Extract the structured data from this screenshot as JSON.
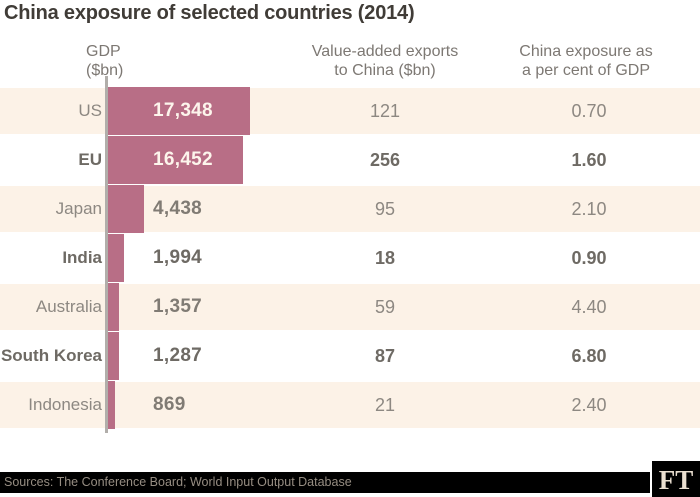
{
  "title": "China exposure of selected countries (2014)",
  "headers": {
    "gdp": {
      "line1": "GDP",
      "line2": "($bn)"
    },
    "exports": {
      "line1": "Value-added exports",
      "line2": "to China ($bn)"
    },
    "exposure": {
      "line1": "China exposure as",
      "line2": "a per cent of GDP"
    }
  },
  "rows": [
    {
      "country": "US",
      "gdp_label": "17,348",
      "gdp_value": 17348,
      "exports": "121",
      "exposure": "0.70",
      "highlight": false
    },
    {
      "country": "EU",
      "gdp_label": "16,452",
      "gdp_value": 16452,
      "exports": "256",
      "exposure": "1.60",
      "highlight": true
    },
    {
      "country": "Japan",
      "gdp_label": "4,438",
      "gdp_value": 4438,
      "exports": "95",
      "exposure": "2.10",
      "highlight": false
    },
    {
      "country": "India",
      "gdp_label": "1,994",
      "gdp_value": 1994,
      "exports": "18",
      "exposure": "0.90",
      "highlight": true
    },
    {
      "country": "Australia",
      "gdp_label": "1,357",
      "gdp_value": 1357,
      "exports": "59",
      "exposure": "4.40",
      "highlight": false
    },
    {
      "country": "South Korea",
      "gdp_label": "1,287",
      "gdp_value": 1287,
      "exports": "87",
      "exposure": "6.80",
      "highlight": true
    },
    {
      "country": "Indonesia",
      "gdp_label": "869",
      "gdp_value": 869,
      "exports": "21",
      "exposure": "2.40",
      "highlight": false
    }
  ],
  "footer": {
    "sources": "Sources: The Conference Board; World Input Output Database",
    "logo": "FT"
  },
  "colors": {
    "bar": "#b86e86",
    "row_stripe": "#fcf2e7",
    "axis_line": "#b1aeaa",
    "title_text": "#403c37",
    "header_text": "#7d7873",
    "text_regular": "#8d8882",
    "text_bold": "#6e6a64",
    "gdp_on_bar_text": "#fdf5ec",
    "footer_bar": "#000000",
    "ft_logo_text": "#eadfd0"
  },
  "chart_data": {
    "type": "bar",
    "orientation": "horizontal",
    "title": "China exposure of selected countries (2014)",
    "categories": [
      "US",
      "EU",
      "Japan",
      "India",
      "Australia",
      "South Korea",
      "Indonesia"
    ],
    "series": [
      {
        "name": "GDP ($bn)",
        "values": [
          17348,
          16452,
          4438,
          1994,
          1357,
          1287,
          869
        ]
      },
      {
        "name": "Value-added exports to China ($bn)",
        "values": [
          121,
          256,
          95,
          18,
          59,
          87,
          21
        ]
      },
      {
        "name": "China exposure as a per cent of GDP",
        "values": [
          0.7,
          1.6,
          2.1,
          0.9,
          4.4,
          6.8,
          2.4
        ]
      }
    ],
    "bar_series": "GDP ($bn)",
    "xlim": [
      0,
      17348
    ],
    "grid": false,
    "legend_position": "none",
    "annotations": "GDP values drawn as horizontal bars; all three measures also shown as table columns"
  }
}
